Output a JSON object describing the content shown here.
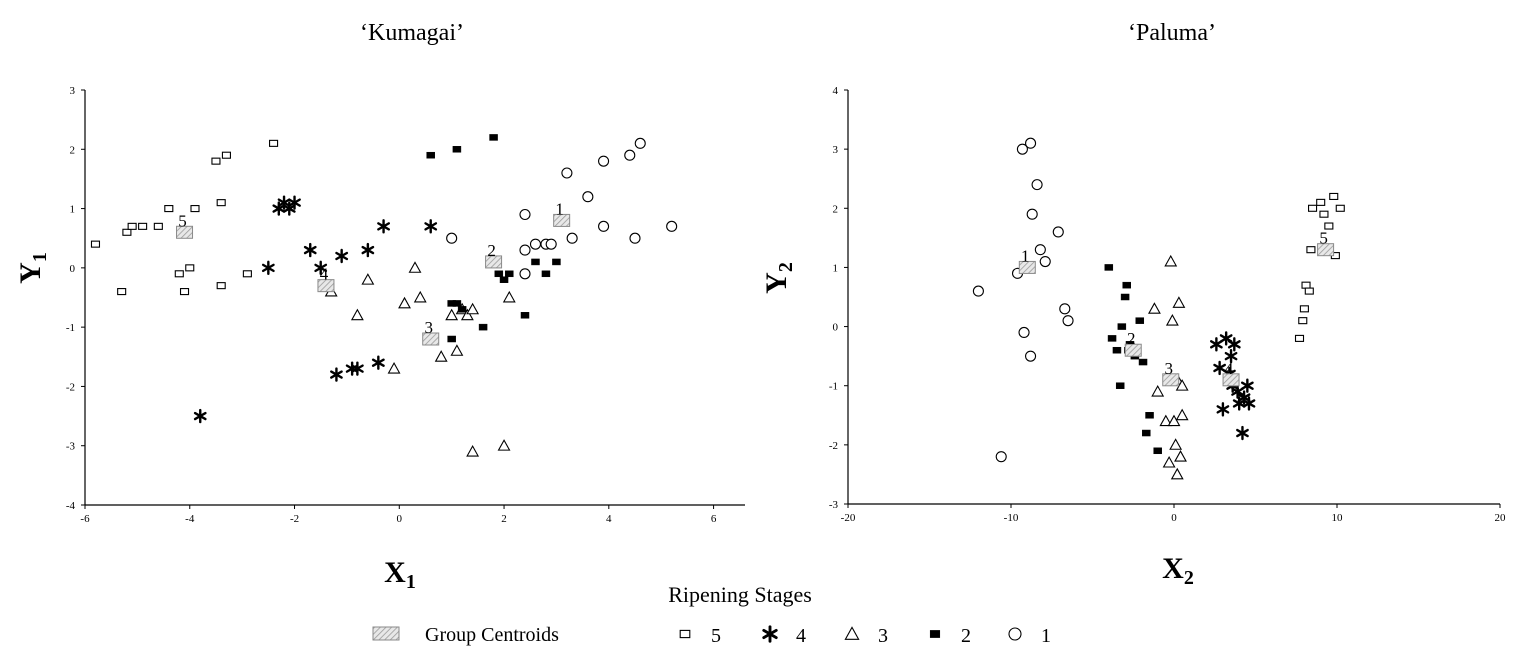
{
  "legend": {
    "title": "Ripening Stages",
    "centroid_label": "Group Centroids",
    "entries": [
      {
        "stage": "5",
        "label": "5",
        "marker": "open-square"
      },
      {
        "stage": "4",
        "label": "4",
        "marker": "asterisk"
      },
      {
        "stage": "3",
        "label": "3",
        "marker": "open-triangle"
      },
      {
        "stage": "2",
        "label": "2",
        "marker": "filled-bar"
      },
      {
        "stage": "1",
        "label": "1",
        "marker": "open-circle"
      }
    ]
  },
  "chart_data": [
    {
      "type": "scatter",
      "title": "‘Kumagai’",
      "xlabel": "X",
      "xlabel_sub": "1",
      "ylabel": "Y",
      "ylabel_sub": "1",
      "xlim": [
        -6,
        6.6
      ],
      "ylim": [
        -4,
        3
      ],
      "xticks": [
        -6,
        -4,
        -2,
        0,
        2,
        4,
        6
      ],
      "yticks": [
        -4,
        -3,
        -2,
        -1,
        0,
        1,
        2,
        3
      ],
      "grid": false,
      "series": [
        {
          "stage": "5",
          "marker": "open-square",
          "points": [
            [
              -5.8,
              0.4
            ],
            [
              -5.3,
              -0.4
            ],
            [
              -5.2,
              0.6
            ],
            [
              -5.1,
              0.7
            ],
            [
              -4.9,
              0.7
            ],
            [
              -4.6,
              0.7
            ],
            [
              -4.4,
              1.0
            ],
            [
              -4.2,
              -0.1
            ],
            [
              -4.1,
              -0.4
            ],
            [
              -4.0,
              -0.0
            ],
            [
              -3.9,
              1.0
            ],
            [
              -3.5,
              1.8
            ],
            [
              -3.4,
              1.1
            ],
            [
              -3.4,
              -0.3
            ],
            [
              -3.3,
              1.9
            ],
            [
              -2.9,
              -0.1
            ],
            [
              -2.4,
              2.1
            ]
          ]
        },
        {
          "stage": "4",
          "marker": "asterisk",
          "points": [
            [
              -3.8,
              -2.5
            ],
            [
              -2.5,
              0.0
            ],
            [
              -2.3,
              1.0
            ],
            [
              -2.2,
              1.1
            ],
            [
              -2.1,
              1.0
            ],
            [
              -2.0,
              1.1
            ],
            [
              -1.7,
              0.3
            ],
            [
              -1.5,
              0.0
            ],
            [
              -1.2,
              -1.8
            ],
            [
              -1.1,
              0.2
            ],
            [
              -0.9,
              -1.7
            ],
            [
              -0.8,
              -1.7
            ],
            [
              -0.6,
              0.3
            ],
            [
              -0.4,
              -1.6
            ],
            [
              -0.3,
              0.7
            ],
            [
              0.6,
              0.7
            ]
          ]
        },
        {
          "stage": "3",
          "marker": "open-triangle",
          "points": [
            [
              -1.3,
              -0.4
            ],
            [
              -0.8,
              -0.8
            ],
            [
              -0.6,
              -0.2
            ],
            [
              -0.1,
              -1.7
            ],
            [
              0.1,
              -0.6
            ],
            [
              0.3,
              0.0
            ],
            [
              0.4,
              -0.5
            ],
            [
              0.8,
              -1.5
            ],
            [
              1.0,
              -0.8
            ],
            [
              1.1,
              -1.4
            ],
            [
              1.2,
              -0.7
            ],
            [
              1.3,
              -0.8
            ],
            [
              1.4,
              -0.7
            ],
            [
              1.4,
              -3.1
            ],
            [
              2.0,
              -3.0
            ],
            [
              2.1,
              -0.5
            ]
          ]
        },
        {
          "stage": "2",
          "marker": "filled-bar",
          "points": [
            [
              0.6,
              1.9
            ],
            [
              1.1,
              2.0
            ],
            [
              1.8,
              2.2
            ],
            [
              1.0,
              -0.6
            ],
            [
              1.1,
              -0.6
            ],
            [
              1.2,
              -0.7
            ],
            [
              1.6,
              -1.0
            ],
            [
              1.0,
              -1.2
            ],
            [
              1.9,
              -0.1
            ],
            [
              2.0,
              -0.2
            ],
            [
              2.1,
              -0.1
            ],
            [
              2.4,
              -0.8
            ],
            [
              2.6,
              0.1
            ],
            [
              2.8,
              -0.1
            ],
            [
              3.0,
              0.1
            ]
          ]
        },
        {
          "stage": "1",
          "marker": "open-circle",
          "points": [
            [
              1.0,
              0.5
            ],
            [
              2.4,
              0.9
            ],
            [
              2.4,
              0.3
            ],
            [
              2.4,
              -0.1
            ],
            [
              2.6,
              0.4
            ],
            [
              2.8,
              0.4
            ],
            [
              2.9,
              0.4
            ],
            [
              3.2,
              1.6
            ],
            [
              3.3,
              0.5
            ],
            [
              3.6,
              1.2
            ],
            [
              3.9,
              0.7
            ],
            [
              3.9,
              1.8
            ],
            [
              4.4,
              1.9
            ],
            [
              4.5,
              0.5
            ],
            [
              4.6,
              2.1
            ],
            [
              5.2,
              0.7
            ]
          ]
        }
      ],
      "centroids": [
        {
          "label": "5",
          "x": -4.1,
          "y": 0.6
        },
        {
          "label": "4",
          "x": -1.4,
          "y": -0.3
        },
        {
          "label": "3",
          "x": 0.6,
          "y": -1.2
        },
        {
          "label": "2",
          "x": 1.8,
          "y": 0.1
        },
        {
          "label": "1",
          "x": 3.1,
          "y": 0.8
        }
      ]
    },
    {
      "type": "scatter",
      "title": "‘Paluma’",
      "xlabel": "X",
      "xlabel_sub": "2",
      "ylabel": "Y",
      "ylabel_sub": "2",
      "xlim": [
        -20,
        20
      ],
      "ylim": [
        -3,
        4
      ],
      "xticks": [
        -20,
        -10,
        0,
        10,
        20
      ],
      "yticks": [
        -3,
        -2,
        -1,
        0,
        1,
        2,
        3,
        4
      ],
      "grid": false,
      "series": [
        {
          "stage": "5",
          "marker": "open-square",
          "points": [
            [
              7.7,
              -0.2
            ],
            [
              7.9,
              0.1
            ],
            [
              8.0,
              0.3
            ],
            [
              8.1,
              0.7
            ],
            [
              8.3,
              0.6
            ],
            [
              8.4,
              1.3
            ],
            [
              8.5,
              2.0
            ],
            [
              9.0,
              2.1
            ],
            [
              9.2,
              1.9
            ],
            [
              9.5,
              1.7
            ],
            [
              9.8,
              2.2
            ],
            [
              9.9,
              1.2
            ],
            [
              10.2,
              2.0
            ]
          ]
        },
        {
          "stage": "4",
          "marker": "asterisk",
          "points": [
            [
              2.6,
              -0.3
            ],
            [
              2.8,
              -0.7
            ],
            [
              3.0,
              -1.4
            ],
            [
              3.2,
              -0.2
            ],
            [
              3.4,
              -0.8
            ],
            [
              3.6,
              -1.0
            ],
            [
              3.7,
              -0.3
            ],
            [
              3.9,
              -1.1
            ],
            [
              4.0,
              -1.3
            ],
            [
              4.2,
              -1.8
            ],
            [
              4.3,
              -1.2
            ],
            [
              4.5,
              -1.0
            ],
            [
              4.6,
              -1.3
            ],
            [
              3.5,
              -0.5
            ]
          ]
        },
        {
          "stage": "3",
          "marker": "open-triangle",
          "points": [
            [
              -1.2,
              0.3
            ],
            [
              -0.5,
              -1.6
            ],
            [
              -0.2,
              1.1
            ],
            [
              -0.1,
              0.1
            ],
            [
              0.0,
              -1.6
            ],
            [
              0.1,
              -2.0
            ],
            [
              0.2,
              -2.5
            ],
            [
              0.2,
              -0.9
            ],
            [
              0.3,
              0.4
            ],
            [
              0.4,
              -2.2
            ],
            [
              0.5,
              -1.5
            ],
            [
              0.5,
              -1.0
            ],
            [
              -1.0,
              -1.1
            ],
            [
              -0.3,
              -2.3
            ]
          ]
        },
        {
          "stage": "2",
          "marker": "filled-bar",
          "points": [
            [
              -4.0,
              1.0
            ],
            [
              -3.8,
              -0.2
            ],
            [
              -3.5,
              -0.4
            ],
            [
              -3.3,
              -1.0
            ],
            [
              -3.2,
              0.0
            ],
            [
              -3.0,
              0.5
            ],
            [
              -2.9,
              0.7
            ],
            [
              -2.7,
              -0.3
            ],
            [
              -2.4,
              -0.5
            ],
            [
              -2.1,
              0.1
            ],
            [
              -1.9,
              -0.6
            ],
            [
              -1.5,
              -1.5
            ],
            [
              -1.7,
              -1.8
            ],
            [
              -1.0,
              -2.1
            ],
            [
              -2.8,
              -0.4
            ]
          ]
        },
        {
          "stage": "1",
          "marker": "open-circle",
          "points": [
            [
              -12.0,
              0.6
            ],
            [
              -10.6,
              -2.2
            ],
            [
              -9.6,
              0.9
            ],
            [
              -9.3,
              3.0
            ],
            [
              -9.2,
              -0.1
            ],
            [
              -8.8,
              -0.5
            ],
            [
              -8.8,
              3.1
            ],
            [
              -8.7,
              1.9
            ],
            [
              -8.4,
              2.4
            ],
            [
              -8.2,
              1.3
            ],
            [
              -7.9,
              1.1
            ],
            [
              -7.1,
              1.6
            ],
            [
              -6.7,
              0.3
            ],
            [
              -6.5,
              0.1
            ]
          ]
        }
      ],
      "centroids": [
        {
          "label": "1",
          "x": -9.0,
          "y": 1.0
        },
        {
          "label": "2",
          "x": -2.5,
          "y": -0.4
        },
        {
          "label": "3",
          "x": -0.2,
          "y": -0.9
        },
        {
          "label": "4",
          "x": 3.5,
          "y": -0.9
        },
        {
          "label": "5",
          "x": 9.3,
          "y": 1.3
        }
      ]
    }
  ]
}
